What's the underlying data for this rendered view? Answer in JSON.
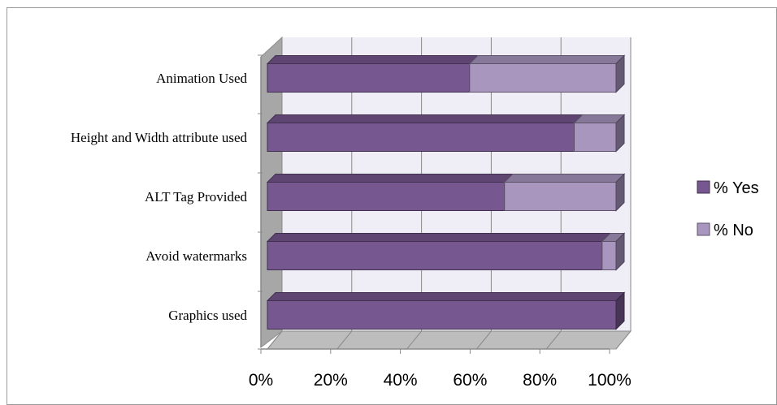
{
  "chart_data": {
    "type": "bar",
    "orientation": "horizontal",
    "stacked": true,
    "percent_stacked": true,
    "three_d": true,
    "categories": [
      "Animation Used",
      "Height and Width attribute used",
      "ALT Tag Provided",
      "Avoid watermarks",
      "Graphics used"
    ],
    "series": [
      {
        "name": "% Yes",
        "values": [
          58,
          88,
          68,
          96,
          100
        ],
        "color": "#77578f"
      },
      {
        "name": "% No",
        "values": [
          42,
          12,
          32,
          4,
          0
        ],
        "color": "#a896bf"
      }
    ],
    "xticks": [
      "0%",
      "20%",
      "40%",
      "60%",
      "80%",
      "100%"
    ],
    "xlim": [
      0,
      100
    ],
    "grid": true,
    "legend_position": "right"
  }
}
